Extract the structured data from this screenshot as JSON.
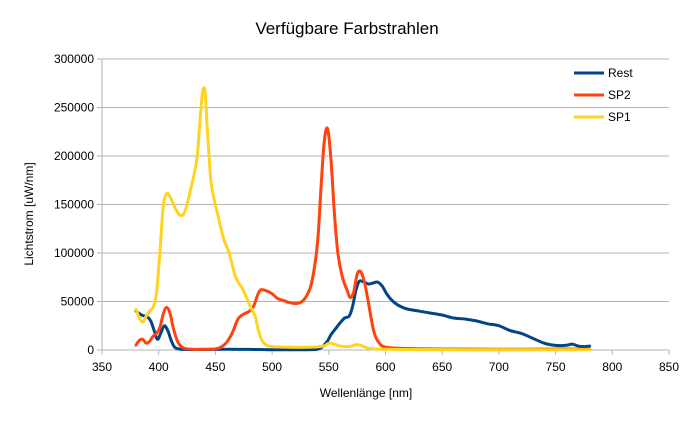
{
  "chart_data": {
    "type": "line",
    "title": "Verfügbare Farbstrahlen",
    "xlabel": "Wellenlänge [nm]",
    "ylabel": "Lichtstrom [uW/nm]",
    "xlim": [
      350,
      850
    ],
    "ylim": [
      0,
      300000
    ],
    "x_ticks": [
      350,
      400,
      450,
      500,
      550,
      600,
      650,
      700,
      750,
      800,
      850
    ],
    "y_ticks": [
      0,
      50000,
      100000,
      150000,
      200000,
      250000,
      300000
    ],
    "grid": "horizontal",
    "legend_position": "top-right",
    "series": [
      {
        "name": "Rest",
        "color": "#004586",
        "points": [
          [
            380,
            40000
          ],
          [
            385,
            36000
          ],
          [
            390,
            34000
          ],
          [
            393,
            30000
          ],
          [
            396,
            20000
          ],
          [
            399,
            11000
          ],
          [
            402,
            18000
          ],
          [
            405,
            25000
          ],
          [
            408,
            20000
          ],
          [
            411,
            10000
          ],
          [
            414,
            3000
          ],
          [
            418,
            1000
          ],
          [
            425,
            500
          ],
          [
            440,
            500
          ],
          [
            460,
            800
          ],
          [
            480,
            600
          ],
          [
            500,
            300
          ],
          [
            520,
            300
          ],
          [
            540,
            800
          ],
          [
            548,
            8000
          ],
          [
            552,
            16000
          ],
          [
            556,
            22000
          ],
          [
            560,
            28000
          ],
          [
            564,
            33000
          ],
          [
            568,
            35000
          ],
          [
            571,
            45000
          ],
          [
            574,
            62000
          ],
          [
            577,
            71000
          ],
          [
            581,
            70000
          ],
          [
            585,
            68000
          ],
          [
            589,
            69000
          ],
          [
            593,
            70000
          ],
          [
            597,
            66000
          ],
          [
            601,
            58000
          ],
          [
            605,
            52000
          ],
          [
            610,
            47000
          ],
          [
            615,
            44000
          ],
          [
            620,
            42000
          ],
          [
            630,
            40000
          ],
          [
            640,
            38000
          ],
          [
            650,
            36000
          ],
          [
            660,
            33000
          ],
          [
            670,
            32000
          ],
          [
            680,
            30000
          ],
          [
            690,
            27000
          ],
          [
            700,
            25000
          ],
          [
            710,
            20000
          ],
          [
            720,
            17000
          ],
          [
            730,
            12000
          ],
          [
            740,
            7000
          ],
          [
            748,
            5000
          ],
          [
            755,
            4500
          ],
          [
            760,
            5000
          ],
          [
            765,
            6000
          ],
          [
            770,
            4000
          ],
          [
            775,
            3500
          ],
          [
            780,
            4000
          ]
        ]
      },
      {
        "name": "SP2",
        "color": "#ff420e",
        "points": [
          [
            380,
            5000
          ],
          [
            383,
            10000
          ],
          [
            386,
            11000
          ],
          [
            389,
            7000
          ],
          [
            392,
            9000
          ],
          [
            395,
            14000
          ],
          [
            398,
            17000
          ],
          [
            401,
            23000
          ],
          [
            404,
            37000
          ],
          [
            407,
            44000
          ],
          [
            410,
            38000
          ],
          [
            413,
            22000
          ],
          [
            417,
            8000
          ],
          [
            422,
            2000
          ],
          [
            430,
            800
          ],
          [
            440,
            800
          ],
          [
            450,
            1200
          ],
          [
            455,
            3000
          ],
          [
            460,
            8000
          ],
          [
            465,
            18000
          ],
          [
            470,
            32000
          ],
          [
            475,
            37000
          ],
          [
            480,
            40000
          ],
          [
            484,
            46000
          ],
          [
            487,
            56000
          ],
          [
            490,
            62000
          ],
          [
            495,
            61000
          ],
          [
            500,
            58000
          ],
          [
            505,
            53000
          ],
          [
            510,
            51000
          ],
          [
            515,
            49000
          ],
          [
            520,
            48000
          ],
          [
            525,
            49000
          ],
          [
            530,
            55000
          ],
          [
            535,
            70000
          ],
          [
            540,
            110000
          ],
          [
            543,
            165000
          ],
          [
            546,
            215000
          ],
          [
            549,
            228000
          ],
          [
            552,
            195000
          ],
          [
            555,
            140000
          ],
          [
            558,
            100000
          ],
          [
            562,
            75000
          ],
          [
            566,
            62000
          ],
          [
            569,
            54000
          ],
          [
            572,
            60000
          ],
          [
            575,
            78000
          ],
          [
            578,
            81000
          ],
          [
            581,
            72000
          ],
          [
            584,
            55000
          ],
          [
            587,
            35000
          ],
          [
            590,
            18000
          ],
          [
            594,
            8000
          ],
          [
            600,
            3000
          ],
          [
            620,
            1500
          ],
          [
            660,
            1000
          ],
          [
            700,
            800
          ],
          [
            740,
            900
          ],
          [
            760,
            1000
          ],
          [
            780,
            700
          ]
        ]
      },
      {
        "name": "SP1",
        "color": "#ffd320",
        "points": [
          [
            380,
            42000
          ],
          [
            383,
            33000
          ],
          [
            386,
            29000
          ],
          [
            389,
            35000
          ],
          [
            392,
            40000
          ],
          [
            395,
            44000
          ],
          [
            398,
            58000
          ],
          [
            401,
            100000
          ],
          [
            404,
            148000
          ],
          [
            407,
            161000
          ],
          [
            410,
            158000
          ],
          [
            413,
            150000
          ],
          [
            416,
            143000
          ],
          [
            419,
            139000
          ],
          [
            422,
            140000
          ],
          [
            425,
            150000
          ],
          [
            428,
            165000
          ],
          [
            431,
            180000
          ],
          [
            434,
            200000
          ],
          [
            437,
            245000
          ],
          [
            439,
            268000
          ],
          [
            441,
            265000
          ],
          [
            443,
            225000
          ],
          [
            446,
            175000
          ],
          [
            449,
            155000
          ],
          [
            452,
            140000
          ],
          [
            455,
            125000
          ],
          [
            458,
            112000
          ],
          [
            461,
            104000
          ],
          [
            464,
            92000
          ],
          [
            467,
            78000
          ],
          [
            470,
            70000
          ],
          [
            473,
            65000
          ],
          [
            476,
            58000
          ],
          [
            479,
            50000
          ],
          [
            482,
            42000
          ],
          [
            485,
            35000
          ],
          [
            488,
            20000
          ],
          [
            491,
            10000
          ],
          [
            495,
            5000
          ],
          [
            500,
            3500
          ],
          [
            510,
            3000
          ],
          [
            530,
            2800
          ],
          [
            545,
            4000
          ],
          [
            550,
            7000
          ],
          [
            555,
            6000
          ],
          [
            560,
            4000
          ],
          [
            565,
            3500
          ],
          [
            570,
            4000
          ],
          [
            574,
            5500
          ],
          [
            578,
            5000
          ],
          [
            582,
            3000
          ],
          [
            590,
            1200
          ],
          [
            620,
            500
          ],
          [
            680,
            300
          ],
          [
            780,
            200
          ]
        ]
      }
    ]
  }
}
